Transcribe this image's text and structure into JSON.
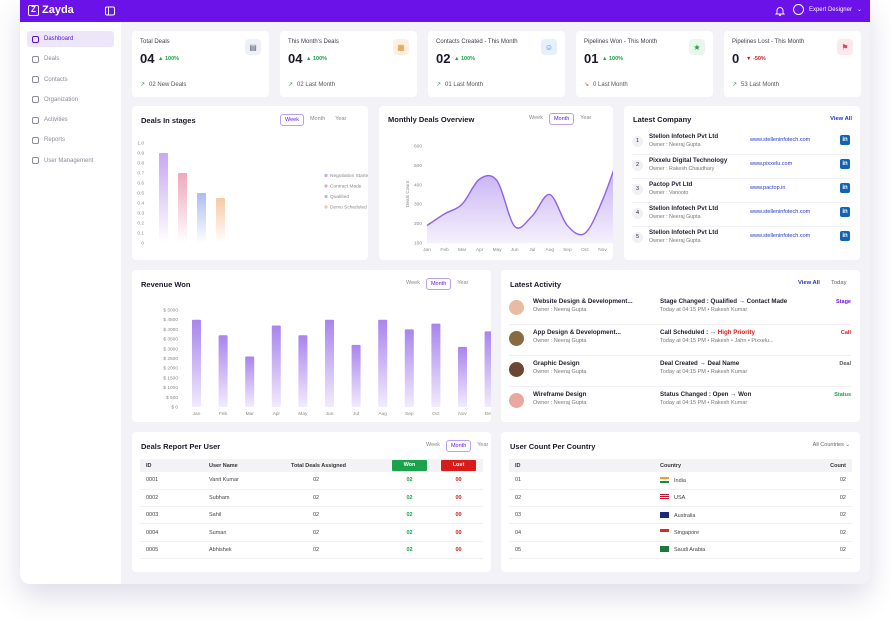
{
  "app": {
    "name": "Zayda",
    "user_name": "Expert Designer"
  },
  "colors": {
    "primary": "#6a12e8",
    "green": "#1aa34a",
    "red": "#d81b1b",
    "bar": "#b89cf0"
  },
  "sidebar": {
    "items": [
      {
        "label": "Dashboard",
        "icon": "dashboard-icon",
        "active": true
      },
      {
        "label": "Deals",
        "icon": "deals-icon"
      },
      {
        "label": "Contacts",
        "icon": "contacts-icon"
      },
      {
        "label": "Organization",
        "icon": "organization-icon"
      },
      {
        "label": "Activities",
        "icon": "activities-icon"
      },
      {
        "label": "Reports",
        "icon": "reports-icon"
      },
      {
        "label": "User Management",
        "icon": "user-management-icon"
      }
    ]
  },
  "stats": [
    {
      "title": "Total Deals",
      "value": "04",
      "delta": "100%",
      "footer": "02 New Deals",
      "trend": "up",
      "icon": "chart-icon"
    },
    {
      "title": "This Month's Deals",
      "value": "04",
      "delta": "100%",
      "footer": "02 Last Month",
      "trend": "up",
      "icon": "calendar-icon"
    },
    {
      "title": "Contacts Created - This Month",
      "value": "02",
      "delta": "100%",
      "footer": "01 Last Month",
      "trend": "up",
      "icon": "contact-icon"
    },
    {
      "title": "Pipelines Won - This Month",
      "value": "01",
      "delta": "100%",
      "footer": "0 Last Month",
      "trend": "down",
      "icon": "trophy-icon"
    },
    {
      "title": "Pipelines Lost - This Month",
      "value": "0",
      "delta": "-50%",
      "footer": "53 Last Month",
      "trend": "up",
      "icon": "lost-icon"
    }
  ],
  "period_tabs": [
    "Week",
    "Month",
    "Year"
  ],
  "deals_in_stages": {
    "title": "Deals In stages",
    "selected_tab": "Week",
    "legend": [
      "Negotiation Started",
      "Contract Made",
      "Qualified",
      "Demo Scheduled"
    ],
    "colors": [
      "#c9a7f3",
      "#f0a6bd",
      "#aebbf0",
      "#f8c8a3"
    ]
  },
  "monthly_overview": {
    "title": "Monthly Deals Overview",
    "selected_tab": "Month",
    "ylabel": "Deals Count"
  },
  "revenue": {
    "title": "Revenue Won",
    "selected_tab": "Month"
  },
  "latest_company": {
    "title": "Latest Company",
    "view_all": "View All",
    "rows": [
      {
        "rank": "1",
        "name": "Stellon Infotech Pvt Ltd",
        "owner": "Owner : Neeraj Gupta",
        "website": "www.stelleninfotech.com"
      },
      {
        "rank": "2",
        "name": "Pixxelu Digital Technology",
        "owner": "Owner : Rakesh Chaudhary",
        "website": "www.pixxelu.com"
      },
      {
        "rank": "3",
        "name": "Pactop Pvt Ltd",
        "owner": "Owner : Vanooto",
        "website": "www.pactop.in"
      },
      {
        "rank": "4",
        "name": "Stellon Infotech Pvt Ltd",
        "owner": "Owner : Neeraj Gupta",
        "website": "www.stelleninfotech.com"
      },
      {
        "rank": "5",
        "name": "Stellon Infotech Pvt Ltd",
        "owner": "Owner : Neeraj Gupta",
        "website": "www.stelleninfotech.com"
      }
    ]
  },
  "latest_activity": {
    "title": "Latest Activity",
    "view_all": "View All",
    "filter": "Today",
    "rows": [
      {
        "name": "Website Design & Development...",
        "owner": "Owner : Neeraj Gupta",
        "change_label": "Stage Changed : Qualified",
        "change_to": "Contact Made",
        "meta": "Today at 04:15 PM  •  Rakesh Kumar",
        "badge": "Stage",
        "badge_color": "#6a12e8"
      },
      {
        "name": "App Design & Development...",
        "owner": "Owner : Neeraj Gupta",
        "change_label": "Call Scheduled :",
        "change_to": "High Priority",
        "meta": "Today at 04:15 PM  •  Rakesh  •  Jahn  •  Pixxelu...",
        "badge": "Call",
        "badge_color": "#d81b1b"
      },
      {
        "name": "Graphic Design",
        "owner": "Owner : Neeraj Gupta",
        "change_label": "Deal Created",
        "change_to": "Deal Name",
        "meta": "Today at 04:15 PM  •  Rakesh Kumar",
        "badge": "Deal",
        "badge_color": "#555555"
      },
      {
        "name": "Wireframe Design",
        "owner": "Owner : Neeraj Gupta",
        "change_label": "Status Changed : Open",
        "change_to": "Won",
        "meta": "Today at 04:15 PM  •  Rakesh Kumar",
        "badge": "Status",
        "badge_color": "#1aa34a"
      }
    ]
  },
  "deals_report": {
    "title": "Deals Report Per User",
    "selected_tab": "Month",
    "headers": [
      "ID",
      "User Name",
      "Total Deals Assigned",
      "Won",
      "Lost"
    ],
    "rows": [
      [
        "0001",
        "Vanit Kumar",
        "02",
        "02",
        "00"
      ],
      [
        "0002",
        "Subham",
        "02",
        "02",
        "00"
      ],
      [
        "0003",
        "Sahil",
        "02",
        "02",
        "00"
      ],
      [
        "0004",
        "Suman",
        "02",
        "02",
        "00"
      ],
      [
        "0005",
        "Abhishek",
        "02",
        "02",
        "00"
      ]
    ]
  },
  "user_country": {
    "title": "User Count Per Country",
    "filter": "All Countries",
    "headers": [
      "ID",
      "Country",
      "Count"
    ],
    "rows": [
      {
        "id": "01",
        "country": "India",
        "count": "02",
        "flag": "flag-india-icon"
      },
      {
        "id": "02",
        "country": "USA",
        "count": "02",
        "flag": "flag-usa-icon"
      },
      {
        "id": "03",
        "country": "Australia",
        "count": "02",
        "flag": "flag-australia-icon"
      },
      {
        "id": "04",
        "country": "Singapore",
        "count": "02",
        "flag": "flag-singapore-icon"
      },
      {
        "id": "05",
        "country": "Saudi Arabia",
        "count": "02",
        "flag": "flag-saudi-arabia-icon"
      }
    ]
  },
  "chart_data": [
    {
      "type": "bar",
      "title": "Deals In stages",
      "categories": [
        "Negotiation Started",
        "Contract Made",
        "Qualified",
        "Demo Scheduled"
      ],
      "values": [
        0.9,
        0.7,
        0.5,
        0.45
      ],
      "ylim": [
        0,
        1
      ],
      "yticks": [
        "0",
        "0.1",
        "0.2",
        "0.3",
        "0.4",
        "0.5",
        "0.6",
        "0.7",
        "0.8",
        "0.9",
        "1.0"
      ],
      "legend": "right"
    },
    {
      "type": "area",
      "title": "Monthly Deals Overview",
      "ylabel": "Deals Count",
      "categories": [
        "Jan",
        "Feb",
        "Mar",
        "Apr",
        "May",
        "Jun",
        "Jul",
        "Aug",
        "Sep",
        "Oct",
        "Nov",
        "Dec"
      ],
      "values": [
        190,
        250,
        300,
        430,
        420,
        185,
        240,
        350,
        190,
        150,
        320,
        570
      ],
      "ylim": [
        100,
        600
      ],
      "yticks": [
        "100",
        "200",
        "300",
        "400",
        "500",
        "600"
      ]
    },
    {
      "type": "bar",
      "title": "Revenue Won",
      "categories": [
        "Jan",
        "Feb",
        "Mar",
        "Apr",
        "May",
        "Jun",
        "Jul",
        "Aug",
        "Sep",
        "Oct",
        "Nov",
        "Dec"
      ],
      "values": [
        4500,
        3700,
        2600,
        4200,
        3700,
        4500,
        3200,
        4500,
        4000,
        4300,
        3100,
        3900
      ],
      "ylim": [
        0,
        5000
      ],
      "yticks": [
        "$ 0",
        "$ 500",
        "$ 1000",
        "$ 1500",
        "$ 2000",
        "$ 2500",
        "$ 3000",
        "$ 3500",
        "$ 4000",
        "$ 4500",
        "$ 5000"
      ]
    }
  ]
}
